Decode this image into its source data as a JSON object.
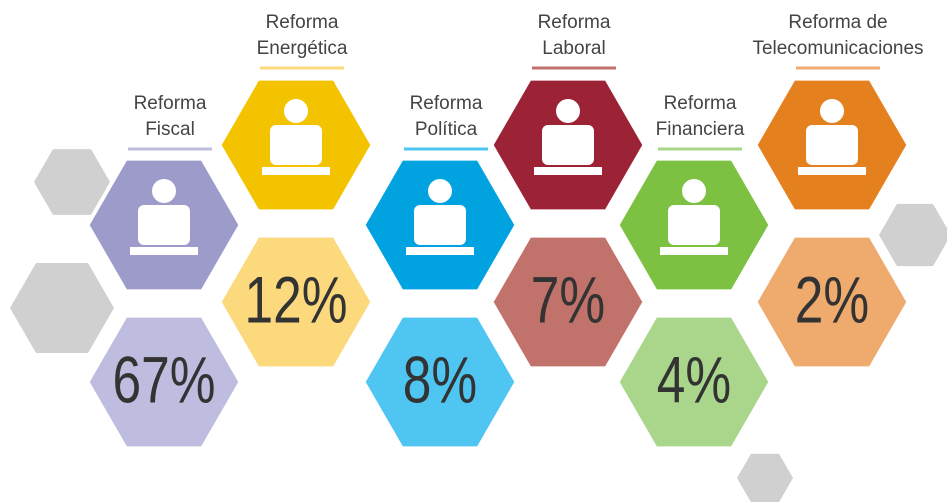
{
  "items": [
    {
      "label": [
        "Reforma",
        "Fiscal"
      ],
      "value": "67%"
    },
    {
      "label": [
        "Reforma",
        "Energética"
      ],
      "value": "12%"
    },
    {
      "label": [
        "Reforma",
        "Política"
      ],
      "value": "8%"
    },
    {
      "label": [
        "Reforma",
        "Laboral"
      ],
      "value": "7%"
    },
    {
      "label": [
        "Reforma",
        "Financiera"
      ],
      "value": "4%"
    },
    {
      "label": [
        "Reforma de",
        "Telecomunicaciones"
      ],
      "value": "2%"
    }
  ]
}
